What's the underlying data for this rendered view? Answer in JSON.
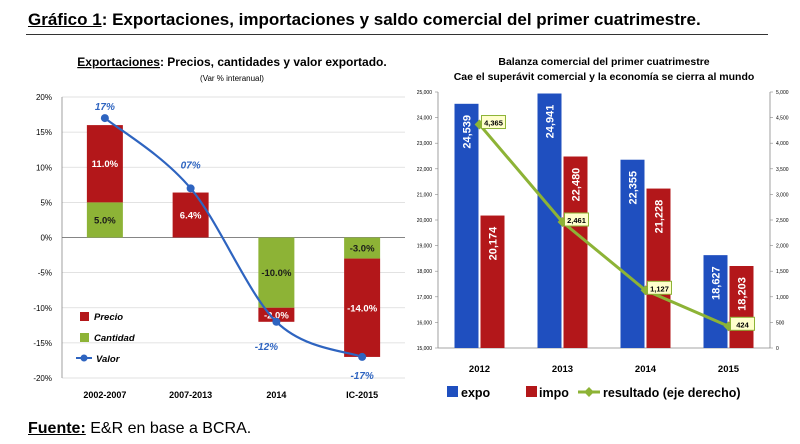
{
  "header": {
    "title_label": "Gráfico 1",
    "title_rest": ": Exportaciones, importaciones y saldo comercial del primer cuatrimestre."
  },
  "footer": {
    "source_label": "Fuente:",
    "source_text": " E&R en base a BCRA."
  },
  "chart_data": [
    {
      "type": "bar",
      "stacked": true,
      "title_underlined": "Exportaciones",
      "title_rest": ": Precios, cantidades y valor exportado.",
      "subtitle": "(Var % interanual)",
      "categories": [
        "2002-2007",
        "2007-2013",
        "2014",
        "IC-2015"
      ],
      "ylim": [
        -20,
        20
      ],
      "yticks": [
        "20%",
        "15%",
        "10%",
        "5%",
        "0%",
        "-5%",
        "-10%",
        "-15%",
        "-20%"
      ],
      "grid": true,
      "legend_position": "bottom-left",
      "series": [
        {
          "name": "Precio",
          "values": [
            11.0,
            6.4,
            -2.0,
            -14.0
          ],
          "labels": [
            "11.0%",
            "6.4%",
            "-2.0%",
            "-14.0%"
          ],
          "color": "#b3171a"
        },
        {
          "name": "Cantidad",
          "values": [
            5.0,
            0,
            -10.0,
            -3.0
          ],
          "labels": [
            "5.0%",
            "",
            "-10.0%",
            "-3.0%"
          ],
          "color": "#8db336"
        },
        {
          "name": "Valor",
          "type": "line",
          "values": [
            17,
            7,
            -12,
            -17
          ],
          "labels": [
            "17%",
            "07%",
            "-12%",
            "-17%"
          ],
          "color": "#2e64c0"
        }
      ]
    },
    {
      "type": "bar",
      "title": "Balanza comercial del primer cuatrimestre",
      "subtitle": "Cae el superávit comercial y la economía se cierra al mundo",
      "categories": [
        "2012",
        "2013",
        "2014",
        "2015"
      ],
      "ylim": [
        15000,
        25000
      ],
      "yticks": [
        "25,000",
        "24,000",
        "23,000",
        "22,000",
        "21,000",
        "20,000",
        "19,000",
        "18,000",
        "17,000",
        "16,000",
        "15,000"
      ],
      "y2lim": [
        0,
        5000
      ],
      "y2ticks": [
        "5,000",
        "4,500",
        "4,000",
        "3,500",
        "3,000",
        "2,500",
        "2,000",
        "1,500",
        "1,000",
        "500",
        "0"
      ],
      "legend_position": "bottom",
      "series": [
        {
          "name": "expo",
          "values": [
            24539,
            24941,
            22355,
            18627
          ],
          "labels": [
            "24,539",
            "24,941",
            "22,355",
            "18,627"
          ],
          "color": "#1f4fbf"
        },
        {
          "name": "impo",
          "values": [
            20174,
            22480,
            21228,
            18203
          ],
          "labels": [
            "20,174",
            "22,480",
            "21,228",
            "18,203"
          ],
          "color": "#b3171a"
        },
        {
          "name": "resultado (eje derecho)",
          "type": "line",
          "axis": "right",
          "values": [
            4365,
            2461,
            1127,
            424
          ],
          "labels": [
            "4,365",
            "2,461",
            "1,127",
            "424"
          ],
          "color": "#8db336"
        }
      ]
    }
  ]
}
